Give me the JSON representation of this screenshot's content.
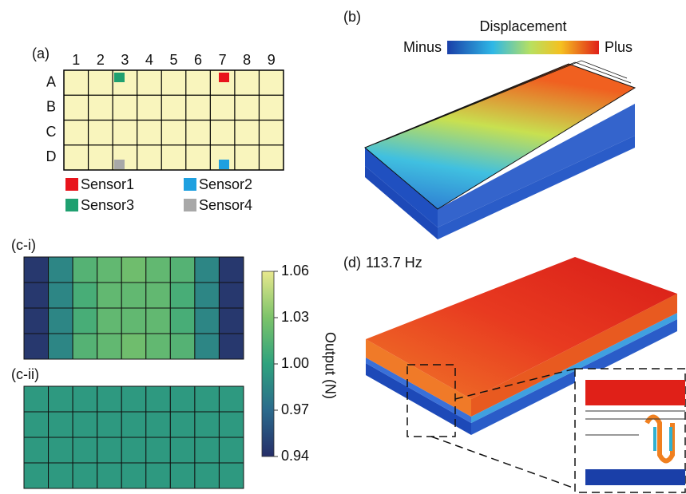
{
  "panel_a": {
    "label": "(a)",
    "columns": [
      "1",
      "2",
      "3",
      "4",
      "5",
      "6",
      "7",
      "8",
      "9"
    ],
    "rows": [
      "A",
      "B",
      "C",
      "D"
    ],
    "sensors": [
      {
        "name": "Sensor1",
        "color": "#e8141c"
      },
      {
        "name": "Sensor2",
        "color": "#1ea0e0"
      },
      {
        "name": "Sensor3",
        "color": "#1fa070"
      },
      {
        "name": "Sensor4",
        "color": "#a8a8a8"
      }
    ]
  },
  "panel_b": {
    "label": "(b)",
    "colorbar_title": "Displacement",
    "low_label": "Minus",
    "high_label": "Plus"
  },
  "panel_d": {
    "label": "(d)",
    "frequency": "113.7 Hz"
  },
  "chart_data": [
    {
      "type": "heatmap",
      "label": "(c-i)",
      "colorbar_label": "Output (N)",
      "clim": [
        0.94,
        1.06
      ],
      "cticks": [
        0.94,
        0.97,
        {
          "value": 1,
          "label": "1.00"
        },
        1.03,
        1.06
      ],
      "values": [
        [
          0.945,
          0.985,
          1.015,
          1.02,
          1.025,
          1.02,
          1.015,
          0.985,
          0.945
        ],
        [
          0.945,
          0.985,
          1.01,
          1.02,
          1.02,
          1.02,
          1.01,
          0.985,
          0.945
        ],
        [
          0.945,
          0.985,
          1.01,
          1.02,
          1.02,
          1.02,
          1.01,
          0.985,
          0.945
        ],
        [
          0.945,
          0.985,
          1.015,
          1.02,
          1.025,
          1.02,
          1.015,
          0.985,
          0.945
        ]
      ]
    },
    {
      "type": "heatmap",
      "label": "(c-ii)",
      "clim": [
        0.94,
        1.06
      ],
      "values": [
        [
          0.995,
          0.995,
          0.995,
          0.995,
          0.995,
          0.995,
          0.995,
          0.995,
          0.995
        ],
        [
          0.995,
          0.995,
          0.995,
          0.995,
          0.995,
          0.995,
          0.995,
          0.995,
          0.995
        ],
        [
          0.995,
          0.995,
          0.995,
          0.995,
          0.995,
          0.995,
          0.995,
          0.995,
          0.995
        ],
        [
          0.995,
          0.995,
          0.995,
          0.995,
          0.995,
          0.995,
          0.995,
          0.995,
          0.995
        ]
      ]
    }
  ]
}
